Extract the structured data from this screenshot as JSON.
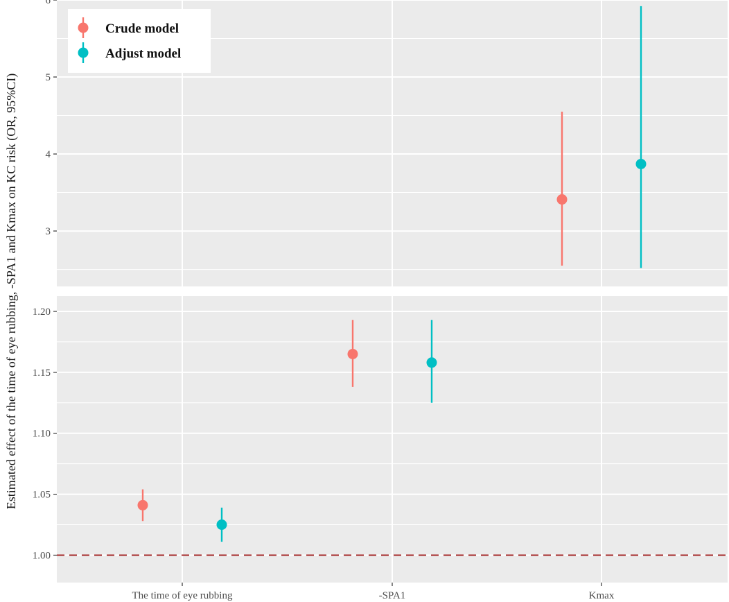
{
  "chart_data": {
    "type": "scatter",
    "variant": "point-range (forest-style), faceted into two vertical panels",
    "ylabel": "Estimated effect of the time of eye rubbing, -SPA1 and Kmax on KC risk (OR, 95%CI)",
    "categories": [
      "The time of eye rubbing",
      "-SPA1",
      "Kmax"
    ],
    "panels": [
      {
        "name": "top",
        "ylim": [
          2.28,
          6.0
        ],
        "yticks": [
          "3",
          "4",
          "5",
          "6"
        ],
        "ytick_values": [
          3,
          4,
          5,
          6
        ]
      },
      {
        "name": "bottom",
        "ylim": [
          0.9775,
          1.2125
        ],
        "yticks": [
          "1.00",
          "1.05",
          "1.10",
          "1.15",
          "1.20"
        ],
        "ytick_values": [
          1.0,
          1.05,
          1.1,
          1.15,
          1.2
        ]
      }
    ],
    "series": [
      {
        "name": "Crude model",
        "color": "#F8766D",
        "points": [
          {
            "category": "The time of eye rubbing",
            "panel": "bottom",
            "or": 1.041,
            "lower": 1.028,
            "upper": 1.054
          },
          {
            "category": "-SPA1",
            "panel": "bottom",
            "or": 1.165,
            "lower": 1.138,
            "upper": 1.193
          },
          {
            "category": "Kmax",
            "panel": "top",
            "or": 3.41,
            "lower": 2.55,
            "upper": 4.55
          }
        ]
      },
      {
        "name": "Adjust model",
        "color": "#00BFC4",
        "points": [
          {
            "category": "The time of eye rubbing",
            "panel": "bottom",
            "or": 1.025,
            "lower": 1.011,
            "upper": 1.039
          },
          {
            "category": "-SPA1",
            "panel": "bottom",
            "or": 1.158,
            "lower": 1.125,
            "upper": 1.193
          },
          {
            "category": "Kmax",
            "panel": "top",
            "or": 3.87,
            "lower": 2.52,
            "upper": 5.92
          }
        ]
      }
    ],
    "reference_line": {
      "value": 1.0,
      "color": "#A52A2A",
      "style": "dashed"
    },
    "legend": {
      "position": "top-left",
      "entries": [
        "Crude model",
        "Adjust model"
      ]
    },
    "grid": true,
    "panel_background": "#EBEBEB"
  }
}
